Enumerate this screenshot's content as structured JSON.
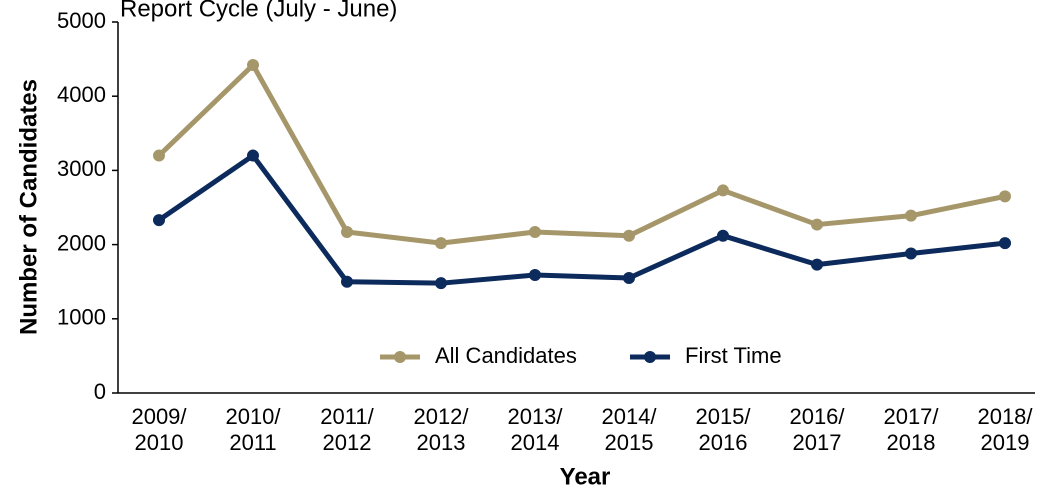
{
  "chart_data": {
    "type": "line",
    "title": "Report Cycle (July - June)",
    "xlabel": "Year",
    "ylabel": "Number of Candidates",
    "categories": [
      "2009/\n2010",
      "2010/\n2011",
      "2011/\n2012",
      "2012/\n2013",
      "2013/\n2014",
      "2014/\n2015",
      "2015/\n2016",
      "2016/\n2017",
      "2017/\n2018",
      "2018/\n2019"
    ],
    "series": [
      {
        "name": "All Candidates",
        "color": "#a6976b",
        "values": [
          3200,
          4420,
          2170,
          2020,
          2170,
          2120,
          2730,
          2270,
          2390,
          2650
        ]
      },
      {
        "name": "First Time",
        "color": "#0c2a5b",
        "values": [
          2330,
          3200,
          1500,
          1480,
          1590,
          1550,
          2120,
          1730,
          1880,
          2020
        ]
      }
    ],
    "ylim": [
      0,
      5000
    ],
    "yticks": [
      0,
      1000,
      2000,
      3000,
      4000,
      5000
    ],
    "grid": false,
    "legend": "lower center"
  }
}
